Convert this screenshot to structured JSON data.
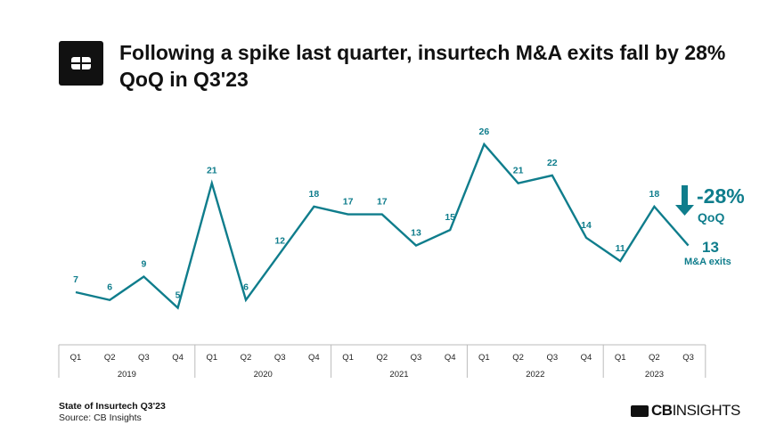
{
  "title": "Following a spike last quarter, insurtech M&A exits fall by 28% QoQ in Q3'23",
  "footer": {
    "report": "State of Insurtech Q3'23",
    "source": "Source: CB Insights",
    "brand_bold": "CB",
    "brand_rest": "INSIGHTS"
  },
  "colors": {
    "line": "#0f7d8c",
    "text": "#111111"
  },
  "callout": {
    "change": "-28%",
    "change_label": "QoQ",
    "value": "13",
    "value_label": "M&A exits",
    "icon": "arrow-down-icon"
  },
  "chart_data": {
    "type": "line",
    "categories": [
      "Q1",
      "Q2",
      "Q3",
      "Q4",
      "Q1",
      "Q2",
      "Q3",
      "Q4",
      "Q1",
      "Q2",
      "Q3",
      "Q4",
      "Q1",
      "Q2",
      "Q3",
      "Q4",
      "Q1",
      "Q2",
      "Q3"
    ],
    "years": [
      {
        "label": "2019",
        "quarters": 4
      },
      {
        "label": "2020",
        "quarters": 4
      },
      {
        "label": "2021",
        "quarters": 4
      },
      {
        "label": "2022",
        "quarters": 4
      },
      {
        "label": "2023",
        "quarters": 3
      }
    ],
    "values": [
      7,
      6,
      9,
      5,
      21,
      6,
      12,
      18,
      17,
      17,
      13,
      15,
      26,
      21,
      22,
      14,
      11,
      18,
      13
    ],
    "data_labels": true,
    "grid": false
  }
}
